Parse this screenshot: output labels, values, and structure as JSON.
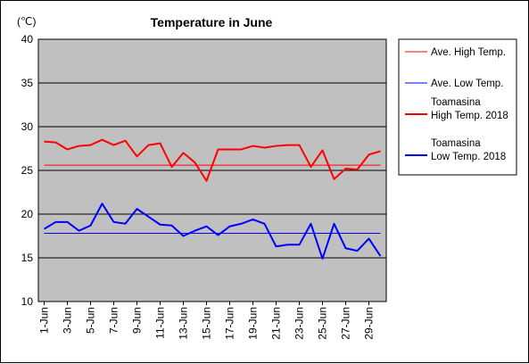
{
  "chart_data": {
    "type": "line",
    "title": "Temperature in June",
    "unit_label": "(℃)",
    "ylim": [
      10,
      40
    ],
    "y_ticks": [
      10,
      15,
      20,
      25,
      30,
      35,
      40
    ],
    "x_tick_labels": [
      "1-Jun",
      "3-Jun",
      "5-Jun",
      "7-Jun",
      "9-Jun",
      "11-Jun",
      "13-Jun",
      "15-Jun",
      "17-Jun",
      "19-Jun",
      "21-Jun",
      "23-Jun",
      "25-Jun",
      "27-Jun",
      "29-Jun"
    ],
    "x": [
      "1-Jun",
      "2-Jun",
      "3-Jun",
      "4-Jun",
      "5-Jun",
      "6-Jun",
      "7-Jun",
      "8-Jun",
      "9-Jun",
      "10-Jun",
      "11-Jun",
      "12-Jun",
      "13-Jun",
      "14-Jun",
      "15-Jun",
      "16-Jun",
      "17-Jun",
      "18-Jun",
      "19-Jun",
      "20-Jun",
      "21-Jun",
      "22-Jun",
      "23-Jun",
      "24-Jun",
      "25-Jun",
      "26-Jun",
      "27-Jun",
      "28-Jun",
      "29-Jun",
      "30-Jun"
    ],
    "grid": true,
    "legend_position": "right",
    "plot_background": "#c0c0c0",
    "series": [
      {
        "name": "Ave. High Temp.",
        "color": "#ff0000",
        "width": "thin",
        "values": [
          25.6,
          25.6,
          25.6,
          25.6,
          25.6,
          25.6,
          25.6,
          25.6,
          25.6,
          25.6,
          25.6,
          25.6,
          25.6,
          25.6,
          25.6,
          25.6,
          25.6,
          25.6,
          25.6,
          25.6,
          25.6,
          25.6,
          25.6,
          25.6,
          25.6,
          25.6,
          25.6,
          25.6,
          25.6,
          25.6
        ]
      },
      {
        "name": "Ave. Low Temp.",
        "color": "#0000ff",
        "width": "thin",
        "values": [
          17.8,
          17.8,
          17.8,
          17.8,
          17.8,
          17.8,
          17.8,
          17.8,
          17.8,
          17.8,
          17.8,
          17.8,
          17.8,
          17.8,
          17.8,
          17.8,
          17.8,
          17.8,
          17.8,
          17.8,
          17.8,
          17.8,
          17.8,
          17.8,
          17.8,
          17.8,
          17.8,
          17.8,
          17.8,
          17.8
        ]
      },
      {
        "name_line1": "Toamasina",
        "name_line2": "High Temp. 2018",
        "color": "#ff0000",
        "width": "thick",
        "values": [
          28.3,
          28.2,
          27.4,
          27.8,
          27.9,
          28.5,
          27.9,
          28.4,
          26.6,
          27.9,
          28.1,
          25.4,
          27.0,
          25.9,
          23.8,
          27.4,
          27.4,
          27.4,
          27.8,
          27.6,
          27.8,
          27.9,
          27.9,
          25.4,
          27.3,
          24.0,
          25.2,
          25.1,
          26.8,
          27.2
        ]
      },
      {
        "name_line1": "Toamasina",
        "name_line2": "Low Temp. 2018",
        "color": "#0000ff",
        "width": "thick",
        "values": [
          18.3,
          19.1,
          19.1,
          18.1,
          18.7,
          21.2,
          19.1,
          18.9,
          20.6,
          19.7,
          18.8,
          18.7,
          17.5,
          18.1,
          18.6,
          17.6,
          18.6,
          18.9,
          19.4,
          18.9,
          16.3,
          16.5,
          16.5,
          18.9,
          14.9,
          18.9,
          16.1,
          15.8,
          17.2,
          15.2
        ]
      }
    ]
  }
}
